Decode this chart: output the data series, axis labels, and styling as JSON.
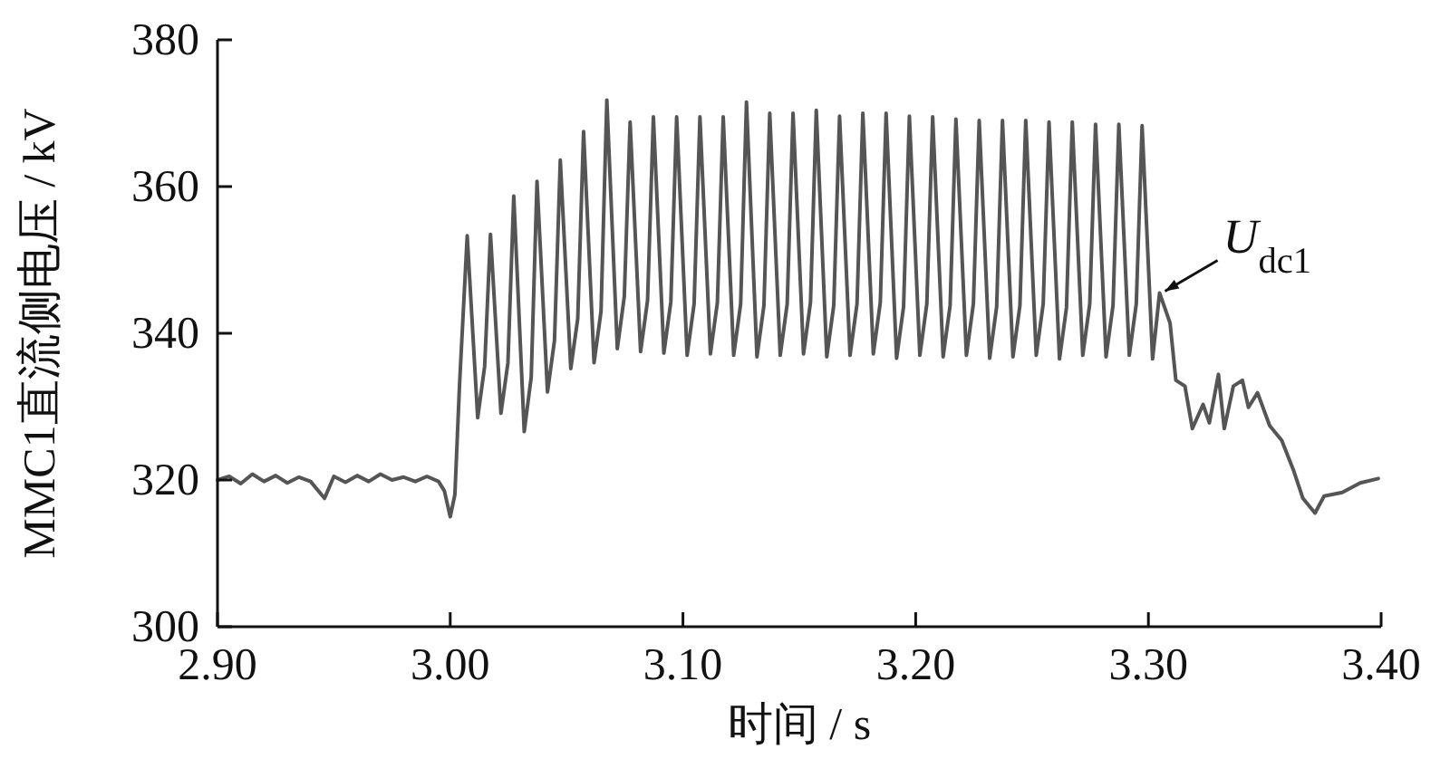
{
  "chart_data": {
    "type": "line",
    "xlabel": "时间 / s",
    "ylabel": "MMC1直流侧电压 / kV",
    "xlim": [
      2.9,
      3.4
    ],
    "ylim": [
      300,
      380
    ],
    "xticks": [
      {
        "value": 2.9,
        "label": "2.90"
      },
      {
        "value": 3.0,
        "label": "3.00"
      },
      {
        "value": 3.1,
        "label": "3.10"
      },
      {
        "value": 3.2,
        "label": "3.20"
      },
      {
        "value": 3.3,
        "label": "3.30"
      },
      {
        "value": 3.4,
        "label": "3.40"
      }
    ],
    "yticks": [
      300,
      320,
      340,
      360,
      380
    ],
    "grid": false,
    "marker": "none",
    "line_style": "solid",
    "annotations": [
      {
        "text": "*U*$_{dc1}$",
        "x": 3.3048,
        "y": 345.5
      }
    ],
    "series": [
      {
        "color": "#555555",
        "x": [
          2.9,
          2.905,
          2.91,
          2.915,
          2.92,
          2.925,
          2.93,
          2.935,
          2.94,
          2.946,
          2.95,
          2.955,
          2.96,
          2.965,
          2.97,
          2.975,
          2.98,
          2.985,
          2.99,
          2.995,
          2.9975,
          3.0,
          3.002,
          3.004,
          3.0073,
          3.0118,
          3.0148,
          3.0173,
          3.0218,
          3.0248,
          3.0273,
          3.0318,
          3.0348,
          3.0373,
          3.0418,
          3.0448,
          3.0473,
          3.0518,
          3.0548,
          3.0573,
          3.0618,
          3.0648,
          3.0673,
          3.0718,
          3.0748,
          3.0773,
          3.0818,
          3.0848,
          3.0873,
          3.0918,
          3.0948,
          3.0973,
          3.1018,
          3.1048,
          3.1073,
          3.1118,
          3.1148,
          3.1173,
          3.1218,
          3.1248,
          3.1273,
          3.1318,
          3.1348,
          3.1373,
          3.1418,
          3.1448,
          3.1473,
          3.1518,
          3.1548,
          3.1573,
          3.1618,
          3.1648,
          3.1673,
          3.1718,
          3.1748,
          3.1773,
          3.1818,
          3.1848,
          3.1873,
          3.1918,
          3.1948,
          3.1973,
          3.2018,
          3.2048,
          3.2073,
          3.2118,
          3.2148,
          3.2173,
          3.2218,
          3.2248,
          3.2273,
          3.2318,
          3.2348,
          3.2373,
          3.2418,
          3.2448,
          3.2473,
          3.2518,
          3.2548,
          3.2573,
          3.2618,
          3.2648,
          3.2673,
          3.2718,
          3.2748,
          3.2773,
          3.2818,
          3.2848,
          3.2873,
          3.2918,
          3.2948,
          3.2973,
          3.3018,
          3.3048,
          3.3093,
          3.3118,
          3.3157,
          3.3189,
          3.3235,
          3.3262,
          3.3301,
          3.3326,
          3.3365,
          3.3404,
          3.343,
          3.3469,
          3.3521,
          3.3573,
          3.3625,
          3.3664,
          3.3716,
          3.3755,
          3.3833,
          3.391,
          3.3988
        ],
        "values": [
          320,
          320.5,
          319.5,
          320.8,
          319.8,
          320.6,
          319.6,
          320.4,
          319.8,
          317.5,
          320.5,
          319.7,
          320.6,
          319.8,
          320.8,
          320,
          320.4,
          319.8,
          320.5,
          319.8,
          318.5,
          315,
          318,
          333,
          353.3,
          328.5,
          335.5,
          353.5,
          329.1,
          336,
          358.7,
          326.6,
          334,
          360.7,
          332,
          339,
          363.6,
          335.2,
          342,
          367.5,
          336,
          343,
          371.8,
          337.9,
          345,
          368.8,
          337.5,
          344.5,
          369.5,
          337.3,
          344.3,
          369.5,
          337,
          344,
          369.5,
          337.2,
          344.2,
          369.5,
          337,
          344,
          371.5,
          336.8,
          343.8,
          370,
          337,
          344,
          370,
          337.2,
          344.2,
          370.4,
          336.8,
          343.8,
          369.6,
          337,
          344,
          370,
          337.2,
          344.2,
          370,
          336.6,
          343.6,
          369.6,
          337,
          344,
          369.5,
          336.8,
          343.8,
          369.2,
          337,
          344,
          369,
          336.6,
          343.6,
          369,
          336.8,
          343.8,
          369,
          337,
          344,
          368.8,
          336.5,
          343.5,
          368.8,
          337,
          344,
          368.5,
          336.8,
          343.8,
          368.5,
          337,
          344,
          368.3,
          336.5,
          345.5,
          341.4,
          333.6,
          332.8,
          327,
          330.3,
          327.8,
          334.4,
          327,
          332.8,
          333.6,
          329.9,
          331.9,
          327.4,
          325.4,
          321.2,
          317.5,
          315.5,
          317.8,
          318.3,
          319.6,
          320.2
        ]
      }
    ]
  }
}
